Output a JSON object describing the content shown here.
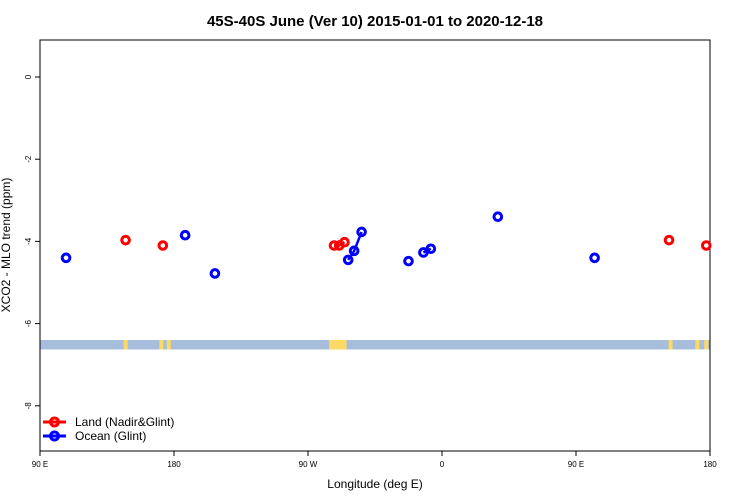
{
  "chart_data": {
    "type": "scatter",
    "title": "45S-40S June (Ver 10)   2015-01-01 to 2020-12-18",
    "xlabel": "Longitude (deg E)",
    "ylabel": "XCO2 - MLO trend (ppm)",
    "xlim": [
      90,
      540
    ],
    "ylim": [
      -9.1,
      0.9
    ],
    "x_ticks": [
      {
        "value": 90,
        "label": "90 E"
      },
      {
        "value": 180,
        "label": "180"
      },
      {
        "value": 270,
        "label": "90 W"
      },
      {
        "value": 360,
        "label": "0"
      },
      {
        "value": 450,
        "label": "90 E"
      },
      {
        "value": 540,
        "label": "180"
      }
    ],
    "y_ticks": [
      {
        "value": 0,
        "label": "0"
      },
      {
        "value": -2,
        "label": "-2"
      },
      {
        "value": -4,
        "label": "-4"
      },
      {
        "value": -6,
        "label": "-6"
      },
      {
        "value": -8,
        "label": "-8"
      }
    ],
    "series": [
      {
        "name": "Land (Nadir&Glint)",
        "color": "#ff0000",
        "points": [
          {
            "x": 147.5,
            "y": -3.97
          },
          {
            "x": 172.5,
            "y": -4.1
          },
          {
            "x": 287.5,
            "y": -4.1
          },
          {
            "x": 291.0,
            "y": -4.1
          },
          {
            "x": 294.5,
            "y": -4.02
          },
          {
            "x": 512.5,
            "y": -3.97
          },
          {
            "x": 537.5,
            "y": -4.1
          }
        ],
        "segments": [
          [
            2,
            3,
            4
          ]
        ]
      },
      {
        "name": "Ocean (Glint)",
        "color": "#0000ff",
        "points": [
          {
            "x": 107.5,
            "y": -4.4
          },
          {
            "x": 187.5,
            "y": -3.85
          },
          {
            "x": 207.5,
            "y": -4.78
          },
          {
            "x": 297.0,
            "y": -4.45
          },
          {
            "x": 301.0,
            "y": -4.23
          },
          {
            "x": 306.0,
            "y": -3.77
          },
          {
            "x": 337.5,
            "y": -4.48
          },
          {
            "x": 347.5,
            "y": -4.27
          },
          {
            "x": 352.5,
            "y": -4.18
          },
          {
            "x": 397.5,
            "y": -3.4
          },
          {
            "x": 462.5,
            "y": -4.4
          }
        ],
        "segments": [
          [
            3,
            4,
            5
          ],
          [
            7,
            8
          ]
        ]
      }
    ],
    "map_strip": {
      "y_range": [
        -6.63,
        -6.4
      ],
      "ocean_color": "#a6bddb",
      "land_color": "#ffd966",
      "land_lon": [
        147.5,
        171.5,
        176.5,
        285.5,
        287.5,
        289.5,
        291.0,
        293.0,
        294.5,
        513.5,
        531.5,
        537.5
      ]
    },
    "legend": {
      "position": "bottom-left",
      "entries": [
        {
          "label": "Land (Nadir&Glint)",
          "color": "#ff0000"
        },
        {
          "label": "Ocean (Glint)",
          "color": "#0000ff"
        }
      ]
    },
    "grid": false
  }
}
